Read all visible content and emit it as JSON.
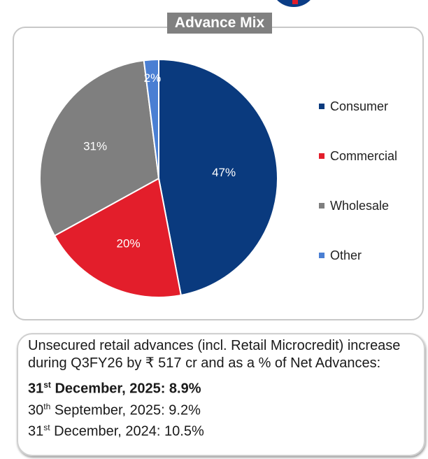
{
  "chart_data": {
    "type": "pie",
    "title": "Advance Mix",
    "categories": [
      "Consumer",
      "Commercial",
      "Wholesale",
      "Other"
    ],
    "values": [
      47,
      20,
      31,
      2
    ],
    "labels": [
      "47%",
      "20%",
      "31%",
      "2%"
    ],
    "colors": [
      "#0a3a7e",
      "#e31e2b",
      "#7f7f7f",
      "#4a7fd3"
    ],
    "legend_position": "right"
  },
  "note": {
    "text": "Unsecured retail advances (incl. Retail Microcredit) increase during Q3FY26 by ₹ 517 cr and as a % of Net Advances:",
    "rows": [
      {
        "day": "31",
        "suffix": "st",
        "rest": " December, 2025:  8.9%",
        "bold": true
      },
      {
        "day": "30",
        "suffix": "th",
        "rest": " September, 2025: 9.2%",
        "bold": false
      },
      {
        "day": "31",
        "suffix": "st",
        "rest": " December, 2024: 10.5%",
        "bold": false
      }
    ]
  }
}
